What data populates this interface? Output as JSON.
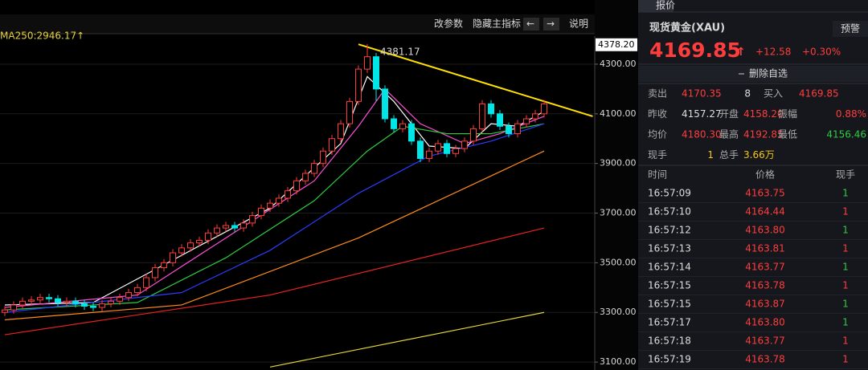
{
  "toolbar": {
    "buttons": [
      "改参数",
      "隐藏主指标",
      "←",
      "→",
      "说明"
    ]
  },
  "chart_data": {
    "type": "candlestick",
    "ma_label": "MA250:2946.17↑",
    "peak_label": "4381.17",
    "axis_marker": {
      "value": 4378.2,
      "label": "4378.20"
    },
    "ylim": [
      3068,
      4413
    ],
    "yticks": [
      {
        "value": 3100,
        "label": "3100.00"
      },
      {
        "value": 3300,
        "label": "3300.00"
      },
      {
        "value": 3500,
        "label": "3500.00"
      },
      {
        "value": 3700,
        "label": "3700.00"
      },
      {
        "value": 3900,
        "label": "3900.00"
      },
      {
        "value": 4100,
        "label": "4100.00"
      },
      {
        "value": 4300,
        "label": "4300.00"
      }
    ],
    "grid": true,
    "up_color": "#ff3d3d",
    "down_color": "#00e5e5",
    "open": [
      3300,
      3310,
      3330,
      3345,
      3350,
      3360,
      3355,
      3340,
      3345,
      3335,
      3325,
      3320,
      3335,
      3345,
      3360,
      3380,
      3400,
      3440,
      3480,
      3500,
      3540,
      3560,
      3580,
      3590,
      3620,
      3640,
      3650,
      3640,
      3660,
      3690,
      3720,
      3740,
      3760,
      3790,
      3830,
      3860,
      3900,
      3950,
      4000,
      4060,
      4150,
      4280,
      4330,
      4200,
      4080,
      4040,
      4060,
      3990,
      3920,
      3950,
      3980,
      3940,
      3960,
      3990,
      4040,
      4140,
      4100,
      4050,
      4020,
      4060,
      4080,
      4100
    ],
    "close": [
      3310,
      3330,
      3345,
      3350,
      3360,
      3355,
      3340,
      3345,
      3335,
      3325,
      3320,
      3335,
      3345,
      3360,
      3380,
      3400,
      3440,
      3480,
      3500,
      3540,
      3560,
      3580,
      3590,
      3620,
      3640,
      3650,
      3640,
      3660,
      3690,
      3720,
      3740,
      3760,
      3790,
      3830,
      3860,
      3900,
      3950,
      4000,
      4060,
      4150,
      4280,
      4330,
      4200,
      4080,
      4040,
      4060,
      3990,
      3920,
      3950,
      3980,
      3940,
      3960,
      3990,
      4040,
      4140,
      4100,
      4050,
      4020,
      4060,
      4080,
      4100,
      4140
    ],
    "high": [
      3325,
      3345,
      3360,
      3365,
      3375,
      3375,
      3370,
      3360,
      3360,
      3350,
      3340,
      3350,
      3360,
      3375,
      3395,
      3415,
      3455,
      3495,
      3515,
      3555,
      3575,
      3595,
      3605,
      3635,
      3655,
      3665,
      3665,
      3675,
      3705,
      3735,
      3755,
      3775,
      3805,
      3845,
      3875,
      3915,
      3965,
      4015,
      4075,
      4165,
      4295,
      4381.17,
      4345,
      4215,
      4095,
      4075,
      4075,
      4005,
      3965,
      3995,
      3995,
      3975,
      4005,
      4055,
      4155,
      4155,
      4115,
      4065,
      4075,
      4095,
      4115,
      4155
    ],
    "low": [
      3285,
      3295,
      3315,
      3330,
      3335,
      3340,
      3325,
      3325,
      3320,
      3310,
      3305,
      3305,
      3320,
      3330,
      3345,
      3365,
      3385,
      3425,
      3465,
      3485,
      3525,
      3545,
      3565,
      3575,
      3605,
      3625,
      3625,
      3625,
      3645,
      3675,
      3705,
      3725,
      3745,
      3775,
      3815,
      3845,
      3885,
      3935,
      3985,
      4045,
      4135,
      4265,
      4150,
      4065,
      4025,
      4025,
      3975,
      3905,
      3905,
      3935,
      3925,
      3925,
      3945,
      3975,
      4025,
      4085,
      4035,
      4005,
      4005,
      4045,
      4065,
      4085
    ],
    "lines": [
      {
        "color": "#ffffff",
        "x": [
          0,
          10,
          20,
          30,
          38,
          41,
          44,
          48,
          52,
          55,
          58,
          61
        ],
        "values": [
          3330,
          3340,
          3530,
          3720,
          3980,
          4250,
          4150,
          3970,
          3960,
          4060,
          4050,
          4110
        ]
      },
      {
        "color": "#ff4fd8",
        "x": [
          0,
          15,
          25,
          35,
          40,
          43,
          47,
          52,
          56,
          61
        ],
        "values": [
          3320,
          3370,
          3600,
          3830,
          4050,
          4200,
          4060,
          3980,
          4020,
          4090
        ]
      },
      {
        "color": "#2ecc40",
        "x": [
          0,
          15,
          25,
          35,
          41,
          45,
          50,
          55,
          61
        ],
        "values": [
          3310,
          3340,
          3520,
          3750,
          3950,
          4050,
          4020,
          4020,
          4060
        ]
      },
      {
        "color": "#2a3cff",
        "x": [
          0,
          20,
          30,
          40,
          48,
          55,
          61
        ],
        "values": [
          3300,
          3380,
          3550,
          3780,
          3930,
          3990,
          4060
        ]
      },
      {
        "color": "#ff8c1a",
        "x": [
          0,
          20,
          40,
          61
        ],
        "values": [
          3270,
          3330,
          3600,
          3950
        ]
      },
      {
        "color": "#e8231f",
        "x": [
          0,
          30,
          61
        ],
        "values": [
          3210,
          3370,
          3640
        ]
      },
      {
        "color": "#e6d23a",
        "x": [
          30,
          61
        ],
        "values": [
          3080,
          3300
        ]
      },
      {
        "color": "#ffe100",
        "x": [
          40,
          66.5
        ],
        "values": [
          4380,
          4090
        ]
      }
    ]
  },
  "quote_panel": {
    "tab": "报价",
    "name": "现货黄金(XAU)",
    "alert": "预警",
    "price": "4169.85",
    "arrow": "↑",
    "change": "+12.58",
    "change_pct": "+0.30%",
    "remove": "删除自选",
    "stats": [
      [
        "卖出",
        "4170.35",
        "8",
        "买入",
        "4169.85"
      ],
      [
        "昨收",
        "4157.27",
        "开盘",
        "4158.20",
        "振幅",
        "0.88%"
      ],
      [
        "均价",
        "4180.30",
        "最高",
        "4192.85",
        "最低",
        "4156.46"
      ],
      [
        "现手",
        "1",
        "总手",
        "3.66万"
      ]
    ],
    "trades": {
      "header": [
        "时间",
        "价格",
        "现手"
      ],
      "rows": [
        [
          "16:57:09",
          "4163.75",
          "1"
        ],
        [
          "16:57:10",
          "4164.44",
          "1"
        ],
        [
          "16:57:12",
          "4163.80",
          "1"
        ],
        [
          "16:57:13",
          "4163.81",
          "1"
        ],
        [
          "16:57:14",
          "4163.77",
          "1"
        ],
        [
          "16:57:15",
          "4163.78",
          "1"
        ],
        [
          "16:57:15",
          "4163.87",
          "1"
        ],
        [
          "16:57:17",
          "4163.80",
          "1"
        ],
        [
          "16:57:18",
          "4163.77",
          "1"
        ],
        [
          "16:57:19",
          "4163.78",
          "1"
        ]
      ],
      "qty_colors": [
        "#2ecc40",
        "#ff3d3d",
        "#2ecc40",
        "#ff3d3d",
        "#2ecc40",
        "#ff3d3d",
        "#2ecc40",
        "#2ecc40",
        "#ff3d3d",
        "#ff3d3d"
      ]
    }
  }
}
